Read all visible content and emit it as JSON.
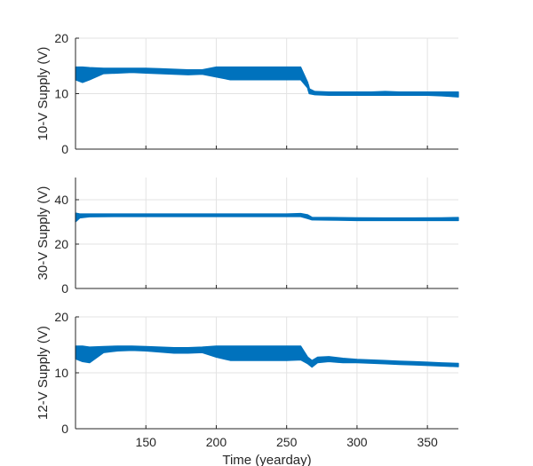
{
  "chart_data": [
    {
      "type": "line",
      "ylabel": "10-V Supply (V)",
      "xlim": [
        100,
        372
      ],
      "ylim": [
        0,
        20
      ],
      "yticks": [
        0,
        10,
        20
      ],
      "xticks": [
        150,
        200,
        250,
        300,
        350
      ],
      "show_xtick_labels": false,
      "grid": true,
      "color": "#0072BD",
      "series": [
        {
          "x": [
            100,
            105,
            110,
            120,
            130,
            140,
            150,
            160,
            170,
            180,
            190,
            200,
            210,
            220,
            230,
            240,
            250,
            260,
            265,
            266,
            270,
            280,
            290,
            300,
            310,
            320,
            330,
            340,
            350,
            360,
            372
          ],
          "y": [
            13.5,
            14.0,
            13.8,
            14.1,
            14.2,
            14.3,
            14.2,
            14.1,
            14.0,
            13.9,
            13.9,
            13.8,
            13.6,
            13.7,
            13.6,
            13.7,
            13.6,
            13.5,
            11.5,
            10.5,
            10.1,
            10.0,
            10.0,
            10.0,
            10.0,
            10.1,
            10.0,
            10.0,
            10.0,
            10.0,
            9.8
          ],
          "band_low": [
            12.5,
            12.0,
            12.5,
            13.6,
            13.7,
            13.8,
            13.7,
            13.6,
            13.5,
            13.4,
            13.5,
            13.0,
            12.5,
            12.5,
            12.5,
            12.5,
            12.5,
            12.5,
            11.0,
            10.0,
            9.8,
            9.7,
            9.7,
            9.7,
            9.7,
            9.7,
            9.7,
            9.7,
            9.7,
            9.6,
            9.4
          ],
          "band_high": [
            14.8,
            14.8,
            14.7,
            14.6,
            14.6,
            14.6,
            14.6,
            14.5,
            14.4,
            14.3,
            14.3,
            14.8,
            14.8,
            14.8,
            14.8,
            14.8,
            14.8,
            14.8,
            12.0,
            10.9,
            10.4,
            10.3,
            10.3,
            10.3,
            10.3,
            10.4,
            10.3,
            10.3,
            10.3,
            10.3,
            10.3
          ]
        }
      ]
    },
    {
      "type": "line",
      "ylabel": "30-V Supply (V)",
      "xlim": [
        100,
        372
      ],
      "ylim": [
        0,
        50
      ],
      "yticks": [
        0,
        20,
        40
      ],
      "xticks": [
        150,
        200,
        250,
        300,
        350
      ],
      "show_xtick_labels": false,
      "grid": true,
      "color": "#0072BD",
      "series": [
        {
          "x": [
            100,
            103,
            110,
            130,
            150,
            170,
            190,
            210,
            230,
            250,
            260,
            265,
            268,
            280,
            300,
            320,
            340,
            360,
            372
          ],
          "y": [
            32.5,
            32.7,
            32.9,
            33.0,
            33.0,
            33.0,
            33.0,
            33.0,
            33.0,
            33.0,
            33.0,
            32.5,
            31.5,
            31.5,
            31.2,
            31.2,
            31.2,
            31.3,
            31.3
          ],
          "band_low": [
            30.0,
            31.8,
            32.3,
            32.4,
            32.4,
            32.4,
            32.4,
            32.4,
            32.4,
            32.4,
            32.4,
            31.5,
            30.9,
            30.8,
            30.6,
            30.6,
            30.6,
            30.6,
            30.6
          ],
          "band_high": [
            34.0,
            33.6,
            33.6,
            33.6,
            33.6,
            33.6,
            33.6,
            33.6,
            33.6,
            33.6,
            33.8,
            33.2,
            32.1,
            32.0,
            31.9,
            31.8,
            31.8,
            31.9,
            32.0
          ]
        }
      ]
    },
    {
      "type": "line",
      "ylabel": "12-V Supply (V)",
      "xlabel": "Time (yearday)",
      "xlim": [
        100,
        372
      ],
      "ylim": [
        0,
        20
      ],
      "yticks": [
        0,
        10,
        20
      ],
      "xticks": [
        150,
        200,
        250,
        300,
        350
      ],
      "show_xtick_labels": true,
      "grid": true,
      "color": "#0072BD",
      "series": [
        {
          "x": [
            100,
            105,
            110,
            120,
            130,
            140,
            150,
            160,
            170,
            180,
            190,
            200,
            210,
            220,
            230,
            240,
            250,
            260,
            265,
            268,
            272,
            280,
            290,
            300,
            310,
            320,
            330,
            340,
            350,
            360,
            372
          ],
          "y": [
            13.8,
            14.0,
            13.6,
            14.2,
            14.4,
            14.5,
            14.4,
            14.2,
            14.0,
            14.0,
            14.1,
            14.0,
            13.8,
            13.6,
            13.6,
            13.6,
            13.6,
            13.5,
            12.3,
            11.6,
            12.3,
            12.4,
            12.2,
            12.1,
            12.0,
            11.9,
            11.8,
            11.7,
            11.6,
            11.5,
            11.4
          ],
          "band_low": [
            12.5,
            12.0,
            11.8,
            13.6,
            13.9,
            14.0,
            13.9,
            13.7,
            13.5,
            13.5,
            13.6,
            12.8,
            12.2,
            12.2,
            12.2,
            12.2,
            12.2,
            12.3,
            11.6,
            11.0,
            11.8,
            12.0,
            11.8,
            11.8,
            11.7,
            11.6,
            11.5,
            11.4,
            11.3,
            11.2,
            11.1
          ],
          "band_high": [
            14.8,
            14.8,
            14.6,
            14.7,
            14.8,
            14.8,
            14.7,
            14.6,
            14.5,
            14.5,
            14.6,
            14.8,
            14.8,
            14.8,
            14.8,
            14.8,
            14.8,
            14.8,
            12.8,
            12.2,
            12.8,
            12.9,
            12.6,
            12.4,
            12.3,
            12.2,
            12.1,
            12.0,
            11.9,
            11.8,
            11.7
          ]
        }
      ]
    }
  ]
}
